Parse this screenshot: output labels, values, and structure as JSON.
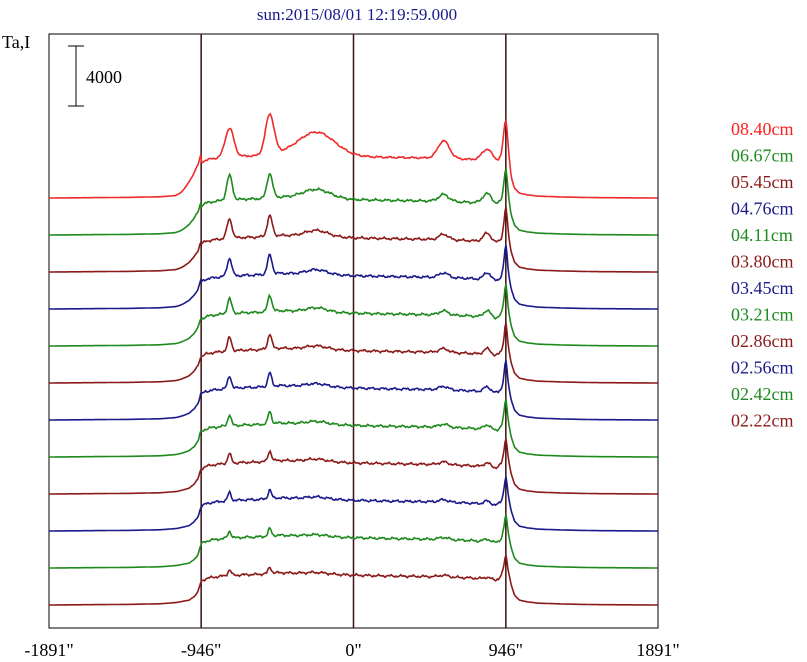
{
  "chart_data": {
    "type": "line",
    "title": "sun:2015/08/01 12:19:59.000",
    "ylabel": "Ta,I",
    "scale_bar_label": "4000",
    "scale_bar_value": 4000,
    "xlim": [
      -1891,
      1891
    ],
    "x_ticks": [
      {
        "value": -1891,
        "label": "-1891\""
      },
      {
        "value": -946,
        "label": "-946\""
      },
      {
        "value": 0,
        "label": "0\""
      },
      {
        "value": 946,
        "label": "946\""
      },
      {
        "value": 1891,
        "label": "1891\""
      }
    ],
    "vertical_markers": [
      -946,
      0,
      946
    ],
    "legend_position": "right",
    "series": [
      {
        "name": "08.40cm",
        "color": "#ee2a2a"
      },
      {
        "name": "06.67cm",
        "color": "#1e8a1e"
      },
      {
        "name": "05.45cm",
        "color": "#8b1a1a"
      },
      {
        "name": "04.76cm",
        "color": "#1a1a8b"
      },
      {
        "name": "04.11cm",
        "color": "#1e8a1e"
      },
      {
        "name": "03.80cm",
        "color": "#8b1a1a"
      },
      {
        "name": "03.45cm",
        "color": "#1a1a8b"
      },
      {
        "name": "03.21cm",
        "color": "#1e8a1e"
      },
      {
        "name": "02.86cm",
        "color": "#8b1a1a"
      },
      {
        "name": "02.56cm",
        "color": "#1a1a8b"
      },
      {
        "name": "02.42cm",
        "color": "#1e8a1e"
      },
      {
        "name": "02.22cm",
        "color": "#8b1a1a"
      }
    ],
    "profile_x": [
      -1891,
      -1400,
      -1200,
      -1100,
      -1020,
      -990,
      -965,
      -955,
      -946,
      -920,
      -890,
      -860,
      -830,
      -800,
      -760,
      -730,
      -700,
      -660,
      -620,
      -560,
      -520,
      -480,
      -440,
      -400,
      -300,
      -200,
      -100,
      0,
      100,
      200,
      300,
      400,
      500,
      580,
      640,
      680,
      720,
      760,
      800,
      840,
      880,
      900,
      920,
      936,
      946,
      960,
      980,
      1000,
      1030,
      1080,
      1150,
      1300,
      1500,
      1891
    ],
    "profile_y": [
      0,
      50,
      100,
      200,
      400,
      700,
      1200,
      1700,
      2100,
      2300,
      2400,
      2450,
      2500,
      2550,
      2600,
      2600,
      2620,
      2650,
      2650,
      2700,
      2750,
      2800,
      2800,
      2780,
      2740,
      2700,
      2650,
      2600,
      2570,
      2540,
      2520,
      2500,
      2480,
      2450,
      2420,
      2400,
      2380,
      2350,
      2300,
      2250,
      2200,
      2300,
      2600,
      3400,
      3900,
      2900,
      1600,
      800,
      400,
      250,
      150,
      80,
      30,
      0
    ],
    "series_shapes": [
      {
        "peaks": [
          [
            -770,
            4200,
            38
          ],
          [
            -520,
            5900,
            38
          ],
          [
            -230,
            3400,
            160
          ],
          [
            560,
            2600,
            50
          ],
          [
            830,
            1700,
            45
          ],
          [
            946,
            3600,
            20
          ]
        ],
        "shoulder": 1200,
        "plateau_lift": 2200
      },
      {
        "peaks": [
          [
            -770,
            3600,
            24
          ],
          [
            -520,
            3600,
            24
          ],
          [
            -230,
            1300,
            120
          ],
          [
            560,
            1000,
            45
          ],
          [
            830,
            1500,
            40
          ],
          [
            946,
            2600,
            15
          ]
        ],
        "shoulder": 600,
        "plateau_lift": 800
      },
      {
        "peaks": [
          [
            -770,
            2800,
            22
          ],
          [
            -520,
            3000,
            22
          ],
          [
            -230,
            900,
            100
          ],
          [
            560,
            800,
            40
          ],
          [
            830,
            1300,
            35
          ],
          [
            946,
            2400,
            14
          ]
        ],
        "shoulder": 500,
        "plateau_lift": 500
      },
      {
        "peaks": [
          [
            -770,
            2600,
            20
          ],
          [
            -520,
            2800,
            20
          ],
          [
            -230,
            700,
            90
          ],
          [
            560,
            700,
            40
          ],
          [
            830,
            1100,
            30
          ],
          [
            946,
            2300,
            13
          ]
        ],
        "shoulder": 400,
        "plateau_lift": 300
      },
      {
        "peaks": [
          [
            -770,
            2200,
            18
          ],
          [
            -520,
            2400,
            18
          ],
          [
            -230,
            600,
            90
          ],
          [
            560,
            600,
            40
          ],
          [
            830,
            1000,
            30
          ],
          [
            946,
            2100,
            13
          ]
        ],
        "shoulder": 300,
        "plateau_lift": 200
      },
      {
        "peaks": [
          [
            -770,
            2000,
            17
          ],
          [
            -520,
            2200,
            17
          ],
          [
            -230,
            500,
            90
          ],
          [
            560,
            550,
            40
          ],
          [
            830,
            900,
            30
          ],
          [
            946,
            1900,
            12
          ]
        ],
        "shoulder": 250,
        "plateau_lift": 100
      },
      {
        "peaks": [
          [
            -770,
            1800,
            16
          ],
          [
            -520,
            2000,
            16
          ],
          [
            -230,
            450,
            90
          ],
          [
            560,
            500,
            40
          ],
          [
            830,
            800,
            30
          ],
          [
            946,
            1800,
            12
          ]
        ],
        "shoulder": 200,
        "plateau_lift": 0
      },
      {
        "peaks": [
          [
            -770,
            1600,
            15
          ],
          [
            -520,
            1800,
            15
          ],
          [
            -230,
            400,
            90
          ],
          [
            560,
            450,
            40
          ],
          [
            830,
            700,
            30
          ],
          [
            946,
            1600,
            12
          ]
        ],
        "shoulder": 150,
        "plateau_lift": -100
      },
      {
        "peaks": [
          [
            -770,
            1400,
            15
          ],
          [
            -520,
            1500,
            15
          ],
          [
            -230,
            350,
            90
          ],
          [
            560,
            400,
            40
          ],
          [
            830,
            600,
            30
          ],
          [
            946,
            1400,
            12
          ]
        ],
        "shoulder": 100,
        "plateau_lift": -200
      },
      {
        "peaks": [
          [
            -770,
            1200,
            14
          ],
          [
            -520,
            1300,
            14
          ],
          [
            -230,
            300,
            90
          ],
          [
            560,
            350,
            40
          ],
          [
            830,
            500,
            30
          ],
          [
            946,
            1200,
            12
          ]
        ],
        "shoulder": 50,
        "plateau_lift": -300
      },
      {
        "peaks": [
          [
            -770,
            1000,
            14
          ],
          [
            -520,
            1100,
            14
          ],
          [
            -230,
            250,
            90
          ],
          [
            560,
            300,
            40
          ],
          [
            830,
            400,
            30
          ],
          [
            946,
            1000,
            12
          ]
        ],
        "shoulder": 0,
        "plateau_lift": -400
      },
      {
        "peaks": [
          [
            -770,
            800,
            14
          ],
          [
            -520,
            900,
            14
          ],
          [
            -230,
            200,
            90
          ],
          [
            560,
            250,
            40
          ],
          [
            830,
            300,
            30
          ],
          [
            946,
            600,
            12
          ]
        ],
        "shoulder": -50,
        "plateau_lift": -500
      }
    ],
    "series_offset_step": 1200
  }
}
